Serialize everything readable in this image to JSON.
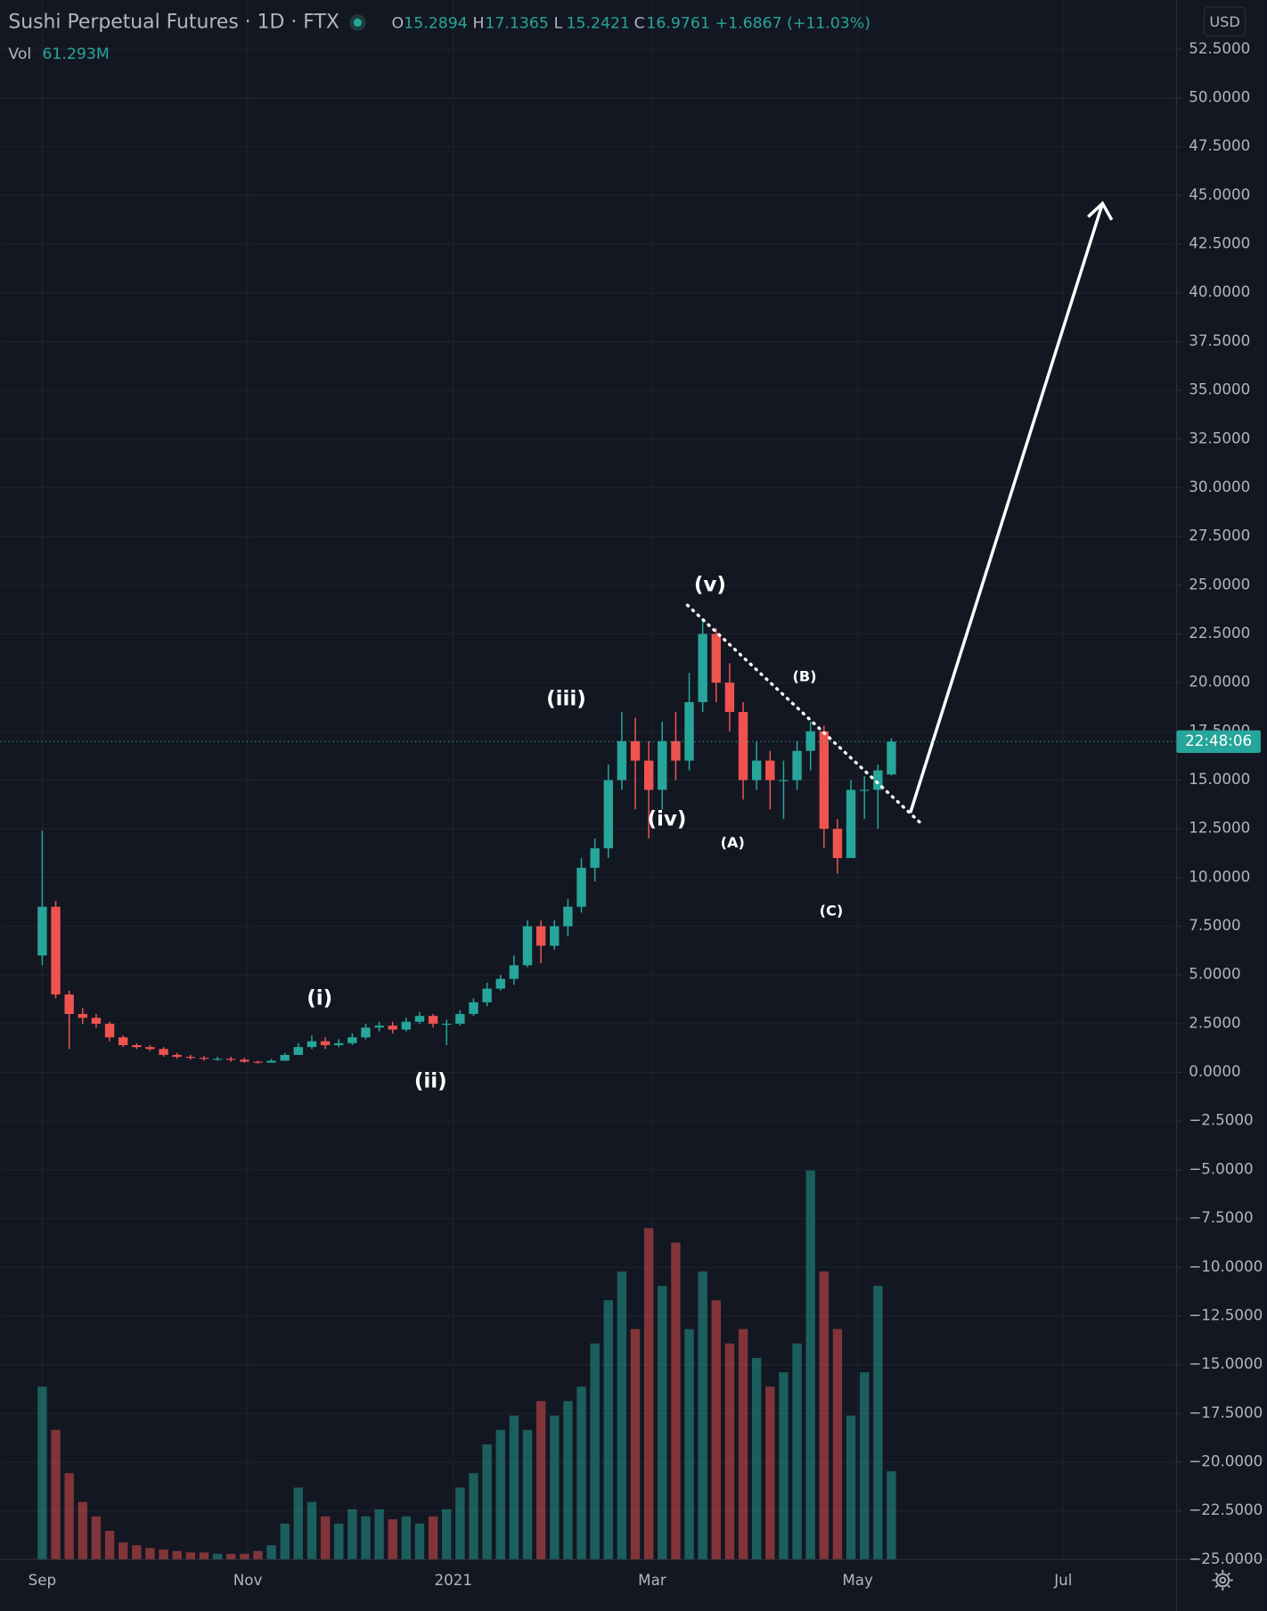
{
  "header": {
    "title": "Sushi Perpetual Futures · 1D · FTX",
    "ohlc_labels": [
      "O",
      "H",
      "L",
      "C"
    ],
    "change": "+1.6867 (+11.03%)",
    "vol_label": "Vol",
    "vol_value": "61.293M",
    "currency": "USD",
    "price_timer": "22:48:06"
  },
  "chart_data": {
    "type": "candlestick",
    "x": [
      0,
      4,
      8,
      12,
      16,
      20,
      24,
      28,
      32,
      36,
      40,
      44,
      48,
      52,
      56,
      60,
      64,
      68,
      72,
      76,
      80,
      84,
      88,
      92,
      96,
      100,
      104,
      108,
      112,
      116,
      120,
      124,
      128,
      132,
      136,
      140,
      144,
      148,
      152,
      156,
      160,
      164,
      168,
      172,
      176,
      180,
      184,
      188,
      192,
      196,
      200,
      204,
      208,
      212,
      216,
      220,
      224,
      228,
      232,
      236,
      240,
      244,
      248,
      252
    ],
    "candles": {
      "open": [
        6.0,
        8.5,
        4.0,
        3.0,
        2.8,
        2.5,
        1.8,
        1.4,
        1.3,
        1.2,
        0.9,
        0.8,
        0.75,
        0.7,
        0.7,
        0.65,
        0.55,
        0.5,
        0.6,
        0.9,
        1.3,
        1.6,
        1.4,
        1.5,
        1.8,
        2.3,
        2.4,
        2.2,
        2.6,
        2.9,
        2.5,
        2.5,
        3.0,
        3.6,
        4.3,
        4.8,
        5.5,
        7.5,
        6.5,
        7.5,
        8.5,
        10.5,
        11.5,
        15.0,
        17.0,
        16.0,
        14.5,
        17.0,
        16.0,
        19.0,
        22.5,
        20.0,
        18.5,
        15.0,
        16.0,
        15.0,
        15.0,
        16.5,
        17.5,
        12.5,
        11.0,
        14.5,
        14.5,
        15.2894
      ],
      "high": [
        12.4,
        8.8,
        4.2,
        3.3,
        3.0,
        2.6,
        1.9,
        1.5,
        1.4,
        1.3,
        1.0,
        0.9,
        0.85,
        0.8,
        0.8,
        0.75,
        0.6,
        0.7,
        1.0,
        1.5,
        1.9,
        1.8,
        1.7,
        2.0,
        2.5,
        2.6,
        2.6,
        2.8,
        3.1,
        3.0,
        2.7,
        3.2,
        3.8,
        4.6,
        5.0,
        6.0,
        7.8,
        7.8,
        7.8,
        8.9,
        11.0,
        12.0,
        15.8,
        18.5,
        18.2,
        17.0,
        18.0,
        18.5,
        20.5,
        23.2,
        22.8,
        21.0,
        19.0,
        17.0,
        16.5,
        16.0,
        17.0,
        18.0,
        17.8,
        13.0,
        15.0,
        15.2,
        15.8,
        17.1365
      ],
      "low": [
        5.5,
        3.8,
        1.2,
        2.5,
        2.3,
        1.6,
        1.3,
        1.2,
        1.1,
        0.8,
        0.7,
        0.65,
        0.6,
        0.6,
        0.55,
        0.5,
        0.45,
        0.5,
        0.6,
        0.9,
        1.2,
        1.2,
        1.3,
        1.4,
        1.7,
        2.1,
        2.0,
        2.1,
        2.5,
        2.3,
        1.4,
        2.4,
        2.9,
        3.4,
        4.2,
        4.5,
        5.4,
        5.6,
        6.3,
        7.0,
        8.2,
        9.8,
        11.0,
        14.5,
        13.5,
        12.0,
        13.5,
        15.0,
        15.5,
        18.5,
        19.0,
        17.5,
        14.0,
        14.5,
        13.5,
        13.0,
        14.5,
        15.5,
        11.5,
        10.2,
        11.0,
        13.0,
        12.5,
        15.2421
      ],
      "close": [
        8.5,
        4.0,
        3.0,
        2.8,
        2.5,
        1.8,
        1.4,
        1.3,
        1.2,
        0.9,
        0.8,
        0.75,
        0.7,
        0.7,
        0.65,
        0.55,
        0.5,
        0.6,
        0.9,
        1.3,
        1.6,
        1.4,
        1.5,
        1.8,
        2.3,
        2.4,
        2.2,
        2.6,
        2.9,
        2.5,
        2.5,
        3.0,
        3.6,
        4.3,
        4.8,
        5.5,
        7.5,
        6.5,
        7.5,
        8.5,
        10.5,
        11.5,
        15.0,
        17.0,
        16.0,
        14.5,
        17.0,
        16.0,
        19.0,
        22.5,
        20.0,
        18.5,
        15.0,
        16.0,
        15.0,
        15.0,
        16.5,
        17.5,
        12.5,
        11.0,
        14.5,
        14.5,
        15.5,
        16.9761
      ]
    },
    "volume": {
      "values": [
        120,
        90,
        60,
        40,
        30,
        20,
        12,
        10,
        8,
        7,
        6,
        5,
        5,
        4,
        4,
        4,
        6,
        10,
        25,
        50,
        40,
        30,
        25,
        35,
        30,
        35,
        28,
        30,
        25,
        30,
        35,
        50,
        60,
        80,
        90,
        100,
        90,
        110,
        100,
        110,
        120,
        150,
        180,
        200,
        160,
        230,
        190,
        220,
        160,
        200,
        180,
        150,
        160,
        140,
        120,
        130,
        150,
        270,
        200,
        160,
        100,
        130,
        190,
        61.293
      ],
      "ylim": [
        0,
        400
      ]
    },
    "up_color": "#26a69a",
    "down_color": "#ef5350",
    "xlim": [
      -12.5,
      336.6
    ],
    "xticks": [
      {
        "value": 0,
        "label": "Sep"
      },
      {
        "value": 61,
        "label": "Nov"
      },
      {
        "value": 122,
        "label": "2021"
      },
      {
        "value": 181,
        "label": "Mar"
      },
      {
        "value": 242,
        "label": "May"
      },
      {
        "value": 303,
        "label": "Jul"
      }
    ],
    "ylim": [
      -25,
      55.03
    ],
    "yticks": [
      {
        "value": 52.5,
        "label": "52.5000"
      },
      {
        "value": 50,
        "label": "50.0000"
      },
      {
        "value": 47.5,
        "label": "47.5000"
      },
      {
        "value": 45,
        "label": "45.0000"
      },
      {
        "value": 42.5,
        "label": "42.5000"
      },
      {
        "value": 40,
        "label": "40.0000"
      },
      {
        "value": 37.5,
        "label": "37.5000"
      },
      {
        "value": 35,
        "label": "35.0000"
      },
      {
        "value": 32.5,
        "label": "32.5000"
      },
      {
        "value": 30,
        "label": "30.0000"
      },
      {
        "value": 27.5,
        "label": "27.5000"
      },
      {
        "value": 25,
        "label": "25.0000"
      },
      {
        "value": 22.5,
        "label": "22.5000"
      },
      {
        "value": 20,
        "label": "20.0000"
      },
      {
        "value": 17.5,
        "label": "17.5000"
      },
      {
        "value": 15,
        "label": "15.0000"
      },
      {
        "value": 12.5,
        "label": "12.5000"
      },
      {
        "value": 10,
        "label": "10.0000"
      },
      {
        "value": 7.5,
        "label": "7.5000"
      },
      {
        "value": 5,
        "label": "5.0000"
      },
      {
        "value": 2.5,
        "label": "2.5000"
      },
      {
        "value": 0,
        "label": "0.0000"
      },
      {
        "value": -2.5,
        "label": "−2.5000"
      },
      {
        "value": -5,
        "label": "−5.0000"
      },
      {
        "value": -7.5,
        "label": "−7.5000"
      },
      {
        "value": -10,
        "label": "−10.0000"
      },
      {
        "value": -12.5,
        "label": "−12.5000"
      },
      {
        "value": -15,
        "label": "−15.0000"
      },
      {
        "value": -17.5,
        "label": "−17.5000"
      },
      {
        "value": -20,
        "label": "−20.0000"
      },
      {
        "value": -22.5,
        "label": "−22.5000"
      },
      {
        "value": -25,
        "label": "−25.0000"
      }
    ],
    "grid": true,
    "annotations": [
      "(i)",
      "(ii)",
      "(iii)",
      "(iv)",
      "(v)",
      "(A)",
      "(B)",
      "(C)"
    ]
  }
}
